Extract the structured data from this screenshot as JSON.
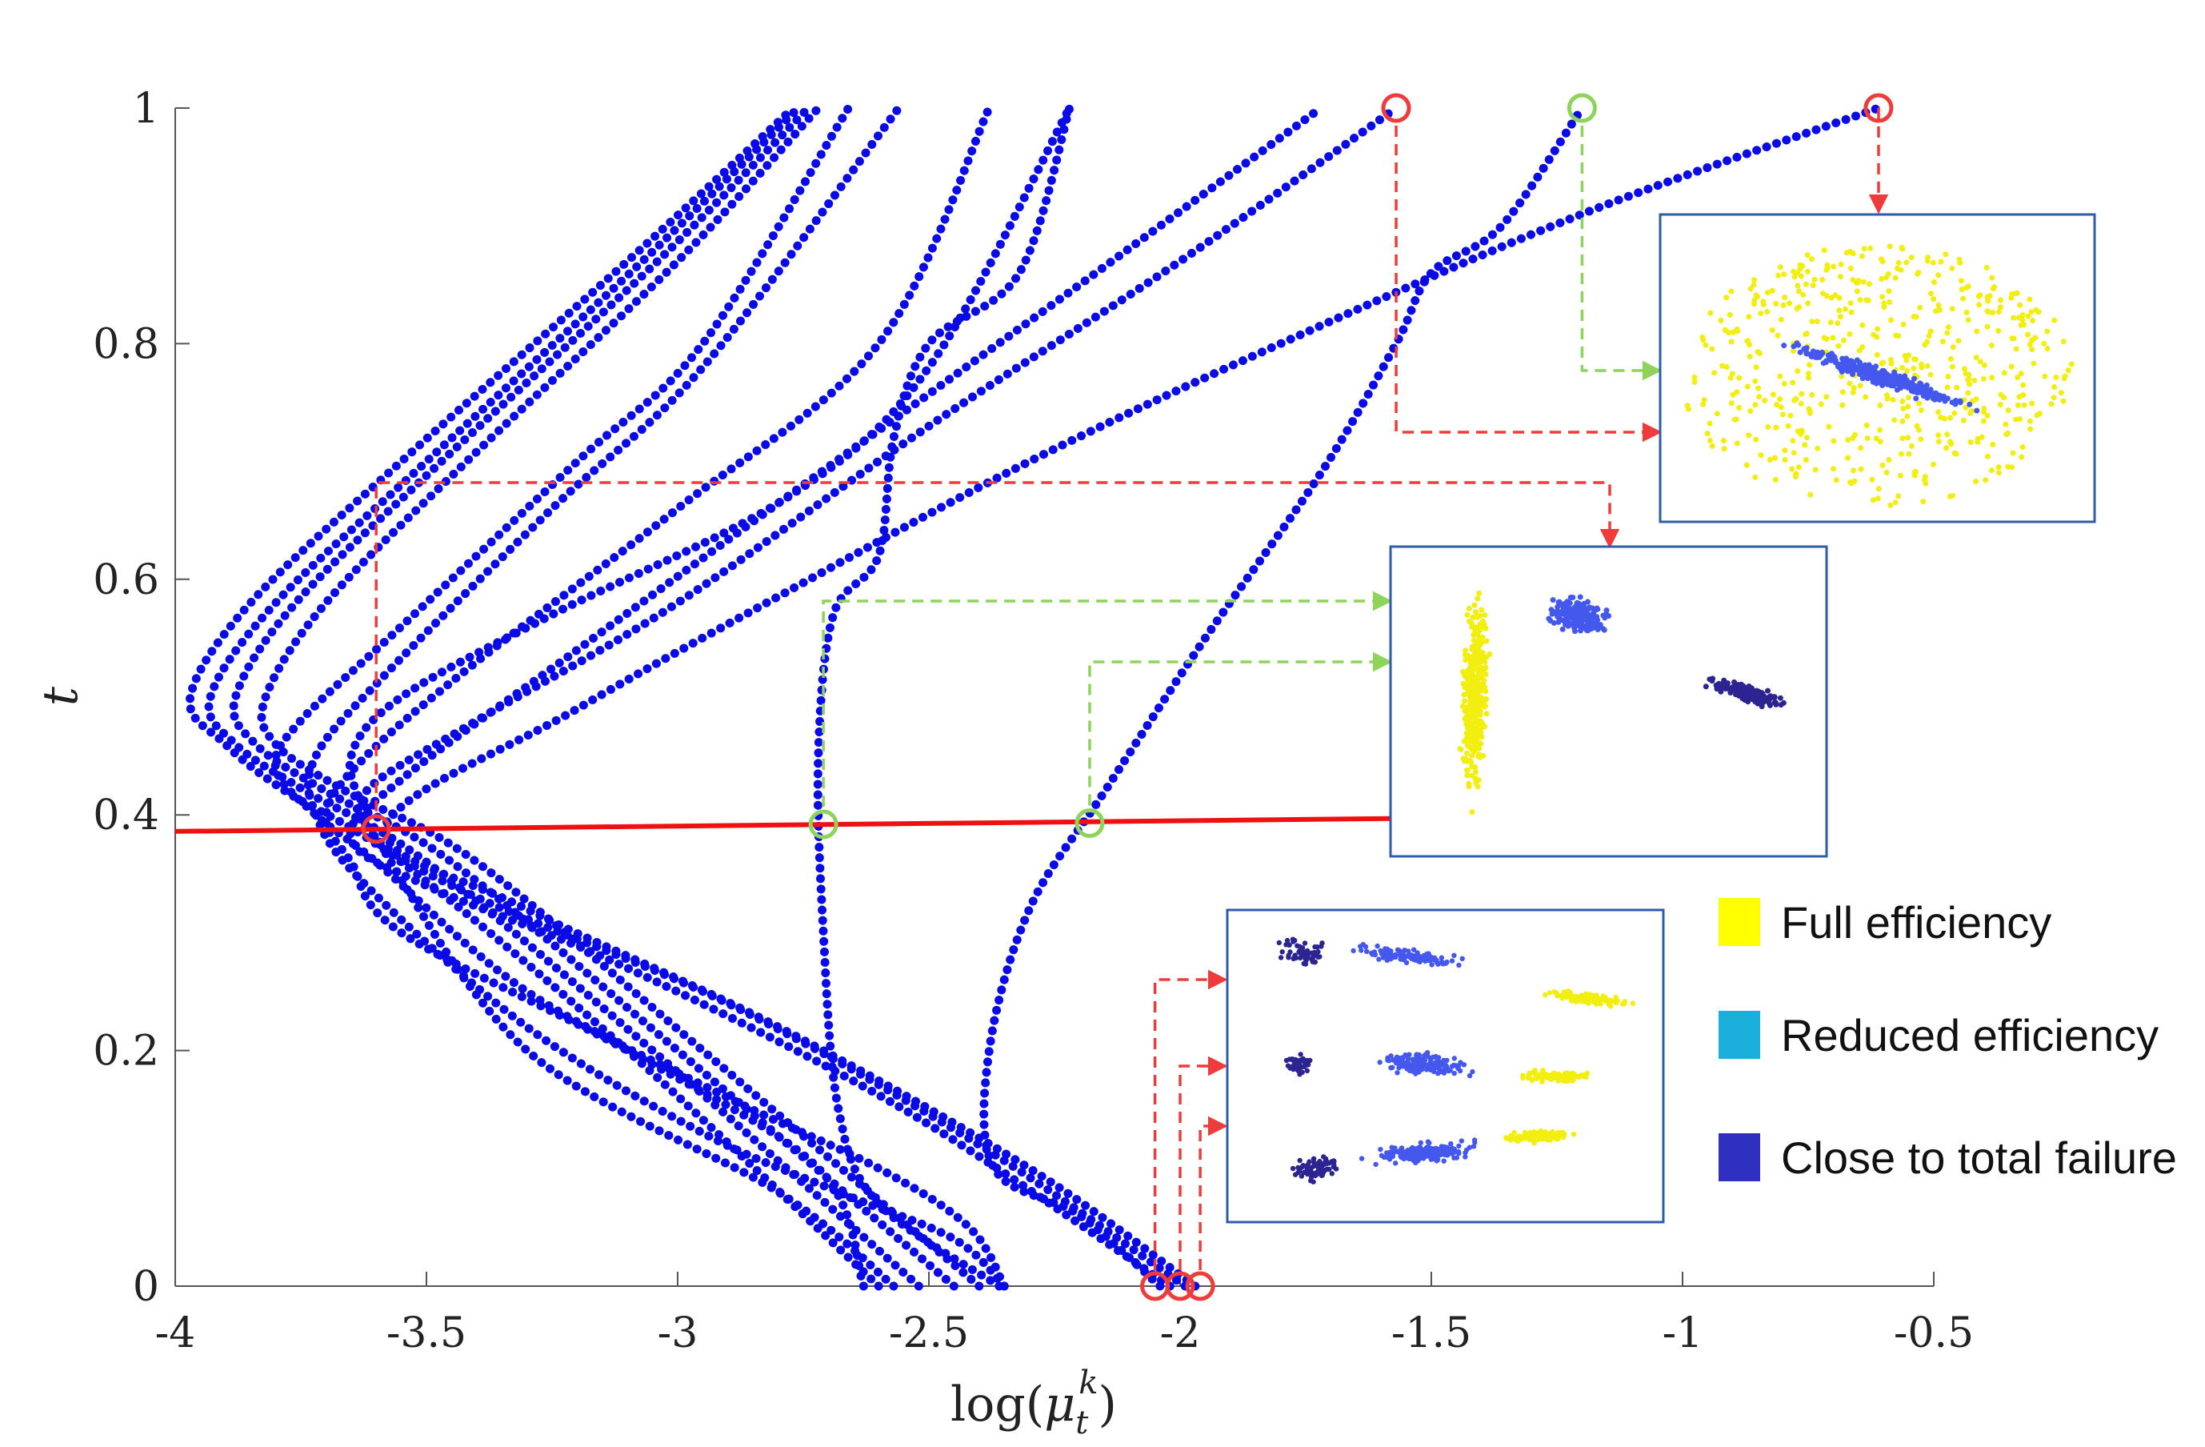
{
  "chart_data": {
    "type": "scatter",
    "title": "",
    "xlabel_base": "log(",
    "xlabel_var": "μ",
    "xlabel_sub": "t",
    "xlabel_sup": "k",
    "xlabel_close": ")",
    "ylabel": "t",
    "xlim": [
      -4,
      -0.5
    ],
    "ylim": [
      0,
      1
    ],
    "xticks": [
      "-4",
      "-3.5",
      "-3",
      "-2.5",
      "-2",
      "-1.5",
      "-1",
      "-0.5"
    ],
    "xtick_values": [
      -4,
      -3.5,
      -3,
      -2.5,
      -2,
      -1.5,
      -1,
      -0.5
    ],
    "yticks": [
      "0",
      "0.2",
      "0.4",
      "0.6",
      "0.8",
      "1"
    ],
    "ytick_values": [
      0,
      0.2,
      0.4,
      0.6,
      0.8,
      1
    ],
    "line_color": "#0a0ae6",
    "cut_line_color": "#ee1111",
    "cut_line": {
      "y_start": 0.386,
      "y_end": 0.397,
      "x_start": -4,
      "x_end": -1.56
    },
    "series": [
      {
        "points": [
          [
            -2.6,
            0
          ],
          [
            -3.1,
            0.2
          ],
          [
            -3.55,
            0.36
          ],
          [
            -3.78,
            0.42
          ],
          [
            -3.9,
            0.46
          ],
          [
            -3.97,
            0.5
          ],
          [
            -3.85,
            0.58
          ],
          [
            -3.55,
            0.7
          ],
          [
            -3.1,
            0.87
          ],
          [
            -2.77,
            1
          ]
        ]
      },
      {
        "points": [
          [
            -2.52,
            0
          ],
          [
            -3.05,
            0.2
          ],
          [
            -3.5,
            0.36
          ],
          [
            -3.74,
            0.42
          ],
          [
            -3.88,
            0.46
          ],
          [
            -3.93,
            0.5
          ],
          [
            -3.8,
            0.58
          ],
          [
            -3.5,
            0.7
          ],
          [
            -3.07,
            0.87
          ],
          [
            -2.76,
            1
          ]
        ]
      },
      {
        "points": [
          [
            -2.45,
            0
          ],
          [
            -3.0,
            0.2
          ],
          [
            -3.45,
            0.36
          ],
          [
            -3.7,
            0.42
          ],
          [
            -3.84,
            0.46
          ],
          [
            -3.88,
            0.5
          ],
          [
            -3.76,
            0.58
          ],
          [
            -3.47,
            0.7
          ],
          [
            -3.04,
            0.87
          ],
          [
            -2.74,
            1
          ]
        ]
      },
      {
        "points": [
          [
            -2.4,
            0
          ],
          [
            -2.95,
            0.2
          ],
          [
            -3.4,
            0.36
          ],
          [
            -3.66,
            0.42
          ],
          [
            -3.8,
            0.46
          ],
          [
            -3.82,
            0.5
          ],
          [
            -3.7,
            0.58
          ],
          [
            -3.42,
            0.7
          ],
          [
            -3.0,
            0.87
          ],
          [
            -2.72,
            1
          ]
        ]
      },
      {
        "points": [
          [
            -2.35,
            0
          ],
          [
            -2.42,
            0.05
          ],
          [
            -2.6,
            0.1
          ],
          [
            -2.9,
            0.16
          ],
          [
            -3.3,
            0.25
          ],
          [
            -3.6,
            0.36
          ],
          [
            -3.72,
            0.4
          ],
          [
            -3.8,
            0.44
          ],
          [
            -3.75,
            0.48
          ],
          [
            -3.55,
            0.56
          ],
          [
            -3.2,
            0.7
          ],
          [
            -2.95,
            0.8
          ],
          [
            -2.66,
            1
          ]
        ]
      },
      {
        "points": [
          [
            -2.35,
            0
          ],
          [
            -2.45,
            0.04
          ],
          [
            -2.68,
            0.08
          ],
          [
            -2.95,
            0.13
          ],
          [
            -3.3,
            0.22
          ],
          [
            -3.62,
            0.34
          ],
          [
            -3.72,
            0.4
          ],
          [
            -3.72,
            0.45
          ],
          [
            -3.58,
            0.52
          ],
          [
            -3.25,
            0.66
          ],
          [
            -2.95,
            0.78
          ],
          [
            -2.56,
            1
          ]
        ]
      },
      {
        "points": [
          [
            -2.63,
            0
          ],
          [
            -2.72,
            0.1
          ],
          [
            -3.1,
            0.2
          ],
          [
            -3.55,
            0.3
          ],
          [
            -3.65,
            0.36
          ],
          [
            -3.7,
            0.4
          ],
          [
            -3.62,
            0.45
          ],
          [
            -3.4,
            0.53
          ],
          [
            -3.0,
            0.66
          ],
          [
            -2.6,
            0.8
          ],
          [
            -2.38,
            1
          ]
        ]
      },
      {
        "points": [
          [
            -2.57,
            0
          ],
          [
            -2.8,
            0.08
          ],
          [
            -3.3,
            0.2
          ],
          [
            -3.6,
            0.38
          ],
          [
            -3.62,
            0.4
          ],
          [
            -3.65,
            0.45
          ],
          [
            -3.55,
            0.5
          ],
          [
            -3.25,
            0.57
          ],
          [
            -2.78,
            0.67
          ],
          [
            -2.5,
            0.78
          ],
          [
            -2.22,
            1
          ]
        ]
      },
      {
        "points": [
          [
            -2.02,
            0
          ],
          [
            -2.55,
            0.15
          ],
          [
            -3.1,
            0.27
          ],
          [
            -3.5,
            0.34
          ],
          [
            -3.65,
            0.38
          ],
          [
            -3.55,
            0.43
          ],
          [
            -3.2,
            0.54
          ],
          [
            -2.75,
            0.68
          ],
          [
            -2.2,
            0.85
          ],
          [
            -1.72,
            1
          ]
        ]
      },
      {
        "points": [
          [
            -1.99,
            0
          ],
          [
            -2.4,
            0.12
          ],
          [
            -2.9,
            0.24
          ],
          [
            -3.4,
            0.33
          ],
          [
            -3.6,
            0.38
          ],
          [
            -3.62,
            0.42
          ],
          [
            -3.4,
            0.48
          ],
          [
            -3.0,
            0.58
          ],
          [
            -2.5,
            0.73
          ],
          [
            -2.0,
            0.87
          ],
          [
            -1.57,
            1
          ]
        ]
      },
      {
        "points": [
          [
            -1.97,
            0
          ],
          [
            -2.3,
            0.1
          ],
          [
            -2.8,
            0.22
          ],
          [
            -3.3,
            0.32
          ],
          [
            -3.58,
            0.39
          ],
          [
            -3.2,
            0.49
          ],
          [
            -2.78,
            0.59
          ],
          [
            -2.3,
            0.7
          ],
          [
            -1.8,
            0.8
          ],
          [
            -1.2,
            0.91
          ],
          [
            -0.61,
            1
          ]
        ]
      },
      {
        "points": [
          [
            -2.36,
            0
          ],
          [
            -2.6,
            0.07
          ],
          [
            -2.68,
            0.15
          ],
          [
            -2.71,
            0.3
          ],
          [
            -2.72,
            0.45
          ],
          [
            -2.69,
            0.57
          ],
          [
            -2.6,
            0.62
          ],
          [
            -2.57,
            0.72
          ],
          [
            -2.5,
            0.8
          ],
          [
            -2.32,
            0.86
          ],
          [
            -2.22,
            1
          ]
        ]
      },
      {
        "points": [
          [
            -2.04,
            0
          ],
          [
            -2.2,
            0.06
          ],
          [
            -2.37,
            0.1
          ],
          [
            -2.38,
            0.2
          ],
          [
            -2.3,
            0.32
          ],
          [
            -2.15,
            0.42
          ],
          [
            -1.95,
            0.55
          ],
          [
            -1.72,
            0.69
          ],
          [
            -1.57,
            0.8
          ],
          [
            -1.5,
            0.86
          ],
          [
            -1.36,
            0.9
          ],
          [
            -1.2,
            1
          ]
        ]
      }
    ],
    "markers": [
      {
        "x": -3.6,
        "y": 0.388,
        "color": "red"
      },
      {
        "x": -2.71,
        "y": 0.392,
        "color": "green"
      },
      {
        "x": -2.18,
        "y": 0.393,
        "color": "green"
      },
      {
        "x": -1.57,
        "y": 1,
        "color": "red"
      },
      {
        "x": -1.2,
        "y": 1,
        "color": "green"
      },
      {
        "x": -0.61,
        "y": 1,
        "color": "red"
      },
      {
        "x": -2.05,
        "y": 0,
        "color": "red"
      },
      {
        "x": -2.0,
        "y": 0,
        "color": "red"
      },
      {
        "x": -1.96,
        "y": 0,
        "color": "red"
      }
    ],
    "legend": [
      {
        "label": "Full efficiency",
        "color": "#ffff00"
      },
      {
        "label": "Reduced efficiency",
        "color": "#1aaedb"
      },
      {
        "label": "Close to total failure",
        "color": "#3030c0"
      }
    ],
    "marker_red": "#ee3b3b",
    "marker_green": "#8ed35a",
    "inset_border": "#2e5ca8",
    "cluster_yellow": "#f2ee10",
    "cluster_blue": "#4458ee",
    "cluster_dark": "#2c2490"
  }
}
